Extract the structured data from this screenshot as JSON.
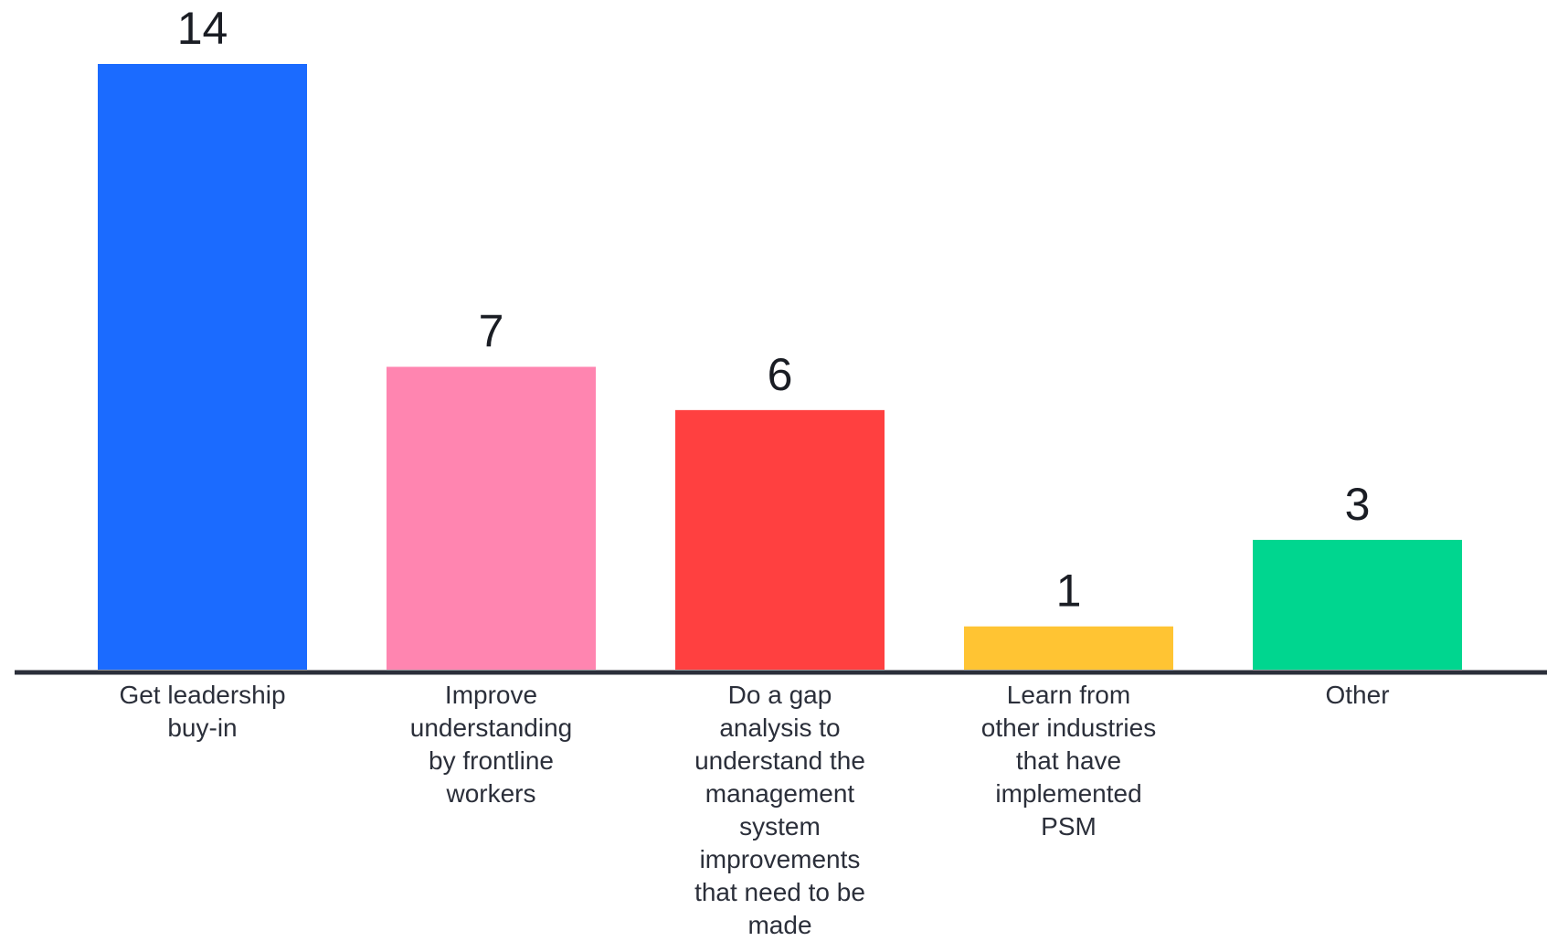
{
  "chart_data": {
    "type": "bar",
    "title": "",
    "xlabel": "",
    "ylabel": "",
    "categories": [
      "Get leadership buy-in",
      "Improve understanding by frontline workers",
      "Do a gap analysis to understand the management system improvements that need to be made",
      "Learn from other industries that have implemented PSM",
      "Other"
    ],
    "category_lines": [
      [
        "Get leadership",
        "buy-in"
      ],
      [
        "Improve",
        "understanding",
        "by frontline",
        "workers"
      ],
      [
        "Do a gap",
        "analysis to",
        "understand the",
        "management",
        "system",
        "improvements",
        "that need to be",
        "made"
      ],
      [
        "Learn from",
        "other industries",
        "that have",
        "implemented",
        "PSM"
      ],
      [
        "Other"
      ]
    ],
    "values": [
      14,
      7,
      6,
      1,
      3
    ],
    "value_labels": [
      "14",
      "7",
      "6",
      "1",
      "3"
    ],
    "colors": [
      "#1b6bff",
      "#ff85b0",
      "#ff4040",
      "#ffc433",
      "#00d68f"
    ],
    "ylim": [
      0,
      14
    ],
    "grid": false,
    "legend": "none",
    "axis_color": "#2b2f3a",
    "label_color": "#2b2f3a"
  }
}
